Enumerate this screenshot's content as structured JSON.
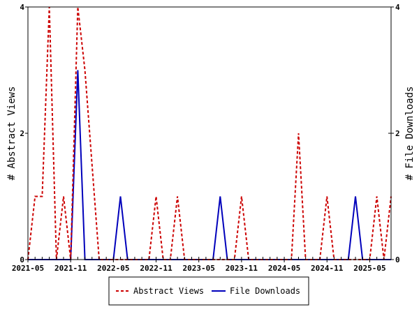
{
  "chart_data": {
    "type": "line",
    "x_start": "2021-05",
    "x_months": [
      "2021-05",
      "2021-06",
      "2021-07",
      "2021-08",
      "2021-09",
      "2021-10",
      "2021-11",
      "2021-12",
      "2022-01",
      "2022-02",
      "2022-03",
      "2022-04",
      "2022-05",
      "2022-06",
      "2022-07",
      "2022-08",
      "2022-09",
      "2022-10",
      "2022-11",
      "2022-12",
      "2023-01",
      "2023-02",
      "2023-03",
      "2023-04",
      "2023-05",
      "2023-06",
      "2023-07",
      "2023-08",
      "2023-09",
      "2023-10",
      "2023-11",
      "2023-12",
      "2024-01",
      "2024-02",
      "2024-03",
      "2024-04",
      "2024-05",
      "2024-06",
      "2024-07",
      "2024-08",
      "2024-09",
      "2024-10",
      "2024-11",
      "2024-12",
      "2025-01",
      "2025-02",
      "2025-03",
      "2025-04",
      "2025-05",
      "2025-06",
      "2025-07",
      "2025-08"
    ],
    "x_tick_labels": [
      "2021-05",
      "2021-11",
      "2022-05",
      "2022-11",
      "2023-05",
      "2023-11",
      "2024-05",
      "2024-11",
      "2025-05"
    ],
    "y_left": {
      "label": "# Abstract Views",
      "ticks": [
        "0",
        "2",
        "4"
      ],
      "range": [
        0,
        4
      ]
    },
    "y_right": {
      "label": "# File Downloads",
      "ticks": [
        "0",
        "2",
        "4"
      ],
      "range": [
        0,
        4
      ]
    },
    "legend_position": "bottom",
    "grid": false,
    "series": [
      {
        "name": "Abstract Views",
        "color": "#cc0000",
        "style": "dashed",
        "values": [
          0,
          1,
          1,
          4,
          0,
          1,
          0,
          4,
          3,
          1.5,
          0,
          0,
          0,
          0,
          0,
          0,
          0,
          0,
          1,
          0,
          0,
          1,
          0,
          0,
          0,
          0,
          0,
          0,
          0,
          0,
          1,
          0,
          0,
          0,
          0,
          0,
          0,
          0,
          2,
          0,
          0,
          0,
          1,
          0,
          0,
          0,
          0,
          0,
          0,
          1,
          0,
          1
        ]
      },
      {
        "name": "File Downloads",
        "color": "#0000bb",
        "style": "solid",
        "values": [
          0,
          0,
          0,
          0,
          0,
          0,
          0,
          3,
          0,
          0,
          0,
          0,
          0,
          1,
          0,
          0,
          0,
          0,
          0,
          0,
          0,
          0,
          0,
          0,
          0,
          0,
          0,
          1,
          0,
          0,
          0,
          0,
          0,
          0,
          0,
          0,
          0,
          0,
          0,
          0,
          0,
          0,
          0,
          0,
          0,
          0,
          1,
          0,
          0,
          0,
          0,
          0
        ]
      }
    ]
  }
}
